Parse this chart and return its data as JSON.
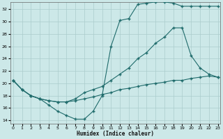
{
  "xlabel": "Humidex (Indice chaleur)",
  "xlim": [
    -0.3,
    23.3
  ],
  "ylim": [
    13.5,
    33.2
  ],
  "xticks": [
    0,
    1,
    2,
    3,
    4,
    5,
    6,
    7,
    8,
    9,
    10,
    11,
    12,
    13,
    14,
    15,
    16,
    17,
    18,
    19,
    20,
    21,
    22,
    23
  ],
  "yticks": [
    14,
    16,
    18,
    20,
    22,
    24,
    26,
    28,
    30,
    32
  ],
  "bg_color": "#cce8e8",
  "grid_color": "#aacccc",
  "line_color": "#1f6b6b",
  "curve1_x": [
    0,
    1,
    2,
    3,
    4,
    5,
    6,
    7,
    8,
    9,
    10,
    11,
    12,
    13,
    14,
    15,
    16,
    17,
    18,
    19,
    20,
    21,
    22,
    23
  ],
  "curve1_y": [
    20.5,
    19.0,
    18.0,
    17.5,
    16.5,
    15.5,
    14.8,
    14.2,
    14.2,
    15.5,
    18.0,
    26.0,
    30.2,
    30.5,
    32.8,
    33.0,
    33.2,
    33.2,
    33.0,
    32.5,
    32.5,
    32.5,
    32.5,
    32.5
  ],
  "curve2_x": [
    0,
    1,
    2,
    3,
    4,
    5,
    6,
    7,
    8,
    9,
    10,
    11,
    12,
    13,
    14,
    15,
    16,
    17,
    18,
    19,
    20,
    21,
    22,
    23
  ],
  "curve2_y": [
    20.5,
    19.0,
    18.0,
    17.5,
    17.2,
    17.0,
    17.0,
    17.5,
    18.5,
    19.0,
    19.5,
    20.5,
    21.5,
    22.5,
    24.0,
    25.0,
    26.5,
    27.5,
    29.0,
    29.0,
    24.5,
    22.5,
    21.5,
    21.0
  ],
  "curve3_x": [
    0,
    1,
    2,
    3,
    4,
    5,
    6,
    7,
    8,
    9,
    10,
    11,
    12,
    13,
    14,
    15,
    16,
    17,
    18,
    19,
    20,
    21,
    22,
    23
  ],
  "curve3_y": [
    20.5,
    19.0,
    18.0,
    17.5,
    17.2,
    17.0,
    17.0,
    17.2,
    17.5,
    17.8,
    18.2,
    18.5,
    19.0,
    19.2,
    19.5,
    19.8,
    20.0,
    20.2,
    20.5,
    20.5,
    20.8,
    21.0,
    21.2,
    21.0
  ]
}
